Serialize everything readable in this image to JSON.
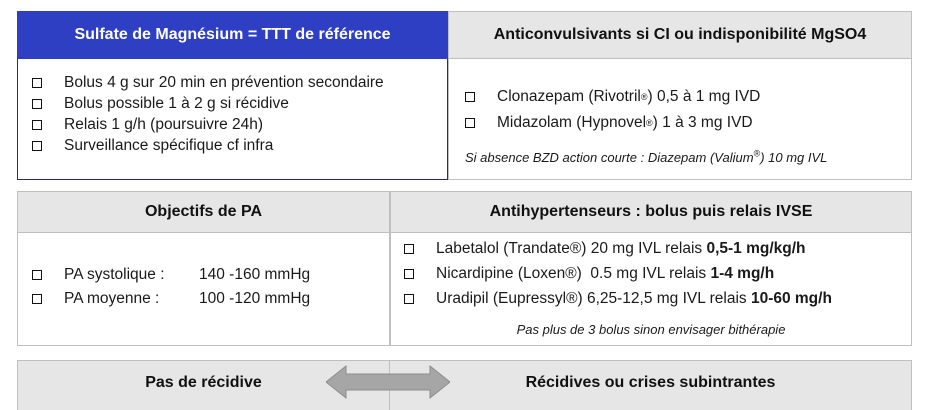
{
  "sulfate": {
    "title": "Sulfate de Magnésium = TTT de référence",
    "items": [
      "Bolus 4 g sur 20 min en prévention secondaire",
      "Bolus possible 1 à 2 g si récidive",
      "Relais 1 g/h (poursuivre 24h)",
      "Surveillance spécifique cf infra"
    ]
  },
  "anticonvulsivants": {
    "title": "Anticonvulsivants si CI ou indisponibilité MgSO4",
    "items": [
      {
        "pre": "Clonazepam (Rivotril",
        "sup": "®",
        "post": ") 0,5 à 1 mg IVD"
      },
      {
        "pre": "Midazolam (Hypnovel",
        "sup": "®",
        "post": ") 1 à 3 mg IVD"
      }
    ],
    "note_pre": "Si absence BZD action courte : Diazepam (Valium",
    "note_sup": "®",
    "note_post": ") 10 mg IVL"
  },
  "objectifs": {
    "title": "Objectifs de PA",
    "items": [
      {
        "label": "PA systolique :",
        "value": "140 -160 mmHg"
      },
      {
        "label": "PA moyenne :",
        "value": "100 -120 mmHg"
      }
    ]
  },
  "antihypertenseurs": {
    "title": "Antihypertenseurs : bolus puis relais IVSE",
    "items": [
      {
        "text": "Labetalol (Trandate®) 20 mg IVL relais ",
        "bold": "0,5-1 mg/kg/h"
      },
      {
        "text": "Nicardipine (Loxen®)  0.5 mg IVL relais ",
        "bold": "1-4 mg/h"
      },
      {
        "text": "Uradipil (Eupressyl®) 6,25-12,5 mg IVL relais ",
        "bold": "10-60 mg/h"
      }
    ],
    "note": "Pas plus de 3 bolus sinon envisager bithérapie"
  },
  "bottom": {
    "left_title": "Pas de récidive",
    "right_title": "Récidives ou crises subintrantes"
  },
  "colors": {
    "header_blue": "#2e3fc4",
    "header_gray": "#e6e6e6",
    "arrow_gray": "#a6a6a6"
  }
}
